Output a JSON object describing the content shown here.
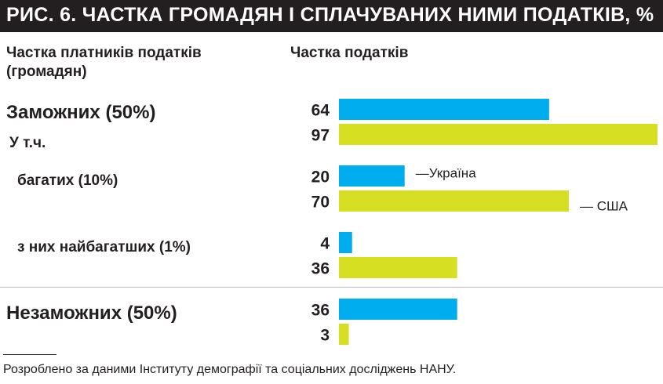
{
  "colors": {
    "ukraine": "#00aeef",
    "usa": "#d7df23",
    "title_bg": "#231f20"
  },
  "chart_data": {
    "type": "bar",
    "orientation": "horizontal",
    "title": "РИС. 6. ЧАСТКА ГРОМАДЯН І СПЛАЧУВАНИХ НИМИ ПОДАТКІВ, %",
    "left_header": "Частка платників податків (громадян)",
    "left_header_lines": [
      "Частка платників податків",
      "(громадян)"
    ],
    "right_header": "Частка податків",
    "subgroup_label": "У т.ч.",
    "categories": [
      "Заможних (50%)",
      "багатих (10%)",
      "з них найбагатших (1%)",
      "Незаможних (50%)"
    ],
    "series": [
      {
        "name": "Україна",
        "legend_text": "—Україна",
        "values": [
          64,
          20,
          4,
          36
        ]
      },
      {
        "name": "США",
        "legend_text": "— США",
        "values": [
          97,
          70,
          36,
          3
        ]
      }
    ],
    "xlim": [
      0,
      100
    ],
    "grid": false
  },
  "footnote": "Розроблено за даними Інституту демографії та соціальних досліджень НАНУ."
}
